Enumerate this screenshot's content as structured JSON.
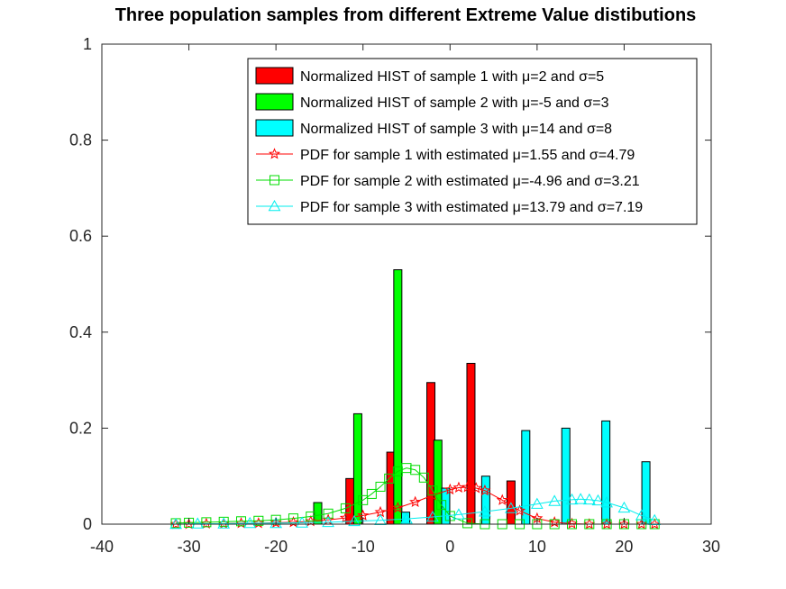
{
  "chart_data": {
    "type": "bar",
    "title": "Three population samples from different Extreme Value distibutions",
    "xlabel": "",
    "ylabel": "",
    "xlim": [
      -40,
      30
    ],
    "ylim": [
      0,
      1
    ],
    "xticks": [
      -40,
      -30,
      -20,
      -10,
      0,
      10,
      20,
      30
    ],
    "yticks": [
      0,
      0.2,
      0.4,
      0.6,
      0.8,
      1
    ],
    "xtick_labels": [
      "-40",
      "-30",
      "-20",
      "-10",
      "0",
      "10",
      "20",
      "30"
    ],
    "ytick_labels": [
      "0",
      "0.2",
      "0.4",
      "0.6",
      "0.8",
      "1"
    ],
    "grid": false,
    "legend_position": "top-right",
    "bar_series": [
      {
        "name": "Normalized HIST of sample 1 with μ=2 and σ=5",
        "color": "#ff0000",
        "x": [
          -11.5,
          -6.8,
          -2.2,
          2.4,
          7.0
        ],
        "values": [
          0.095,
          0.15,
          0.295,
          0.335,
          0.09
        ]
      },
      {
        "name": "Normalized HIST of sample 2 with μ=-5 and σ=3",
        "color": "#00ff00",
        "x": [
          -15.2,
          -10.6,
          -6.0,
          -1.4
        ],
        "values": [
          0.045,
          0.23,
          0.53,
          0.175
        ]
      },
      {
        "name": "Normalized HIST of sample 3 with μ=14 and σ=8",
        "color": "#00ffff",
        "x": [
          -5.1,
          -0.5,
          4.1,
          8.7,
          13.3,
          17.9,
          22.5
        ],
        "values": [
          0.025,
          0.075,
          0.1,
          0.195,
          0.2,
          0.215,
          0.13
        ]
      }
    ],
    "line_series": [
      {
        "name": "PDF for sample 1 with estimated μ=1.55 and σ=4.79",
        "color": "#ff0000",
        "marker": "star",
        "x": [
          -31.5,
          -30,
          -28,
          -26,
          -24,
          -22,
          -20,
          -18,
          -16,
          -14,
          -12,
          -10,
          -8,
          -6,
          -4,
          -2,
          0,
          1,
          2,
          3,
          4,
          6,
          8,
          10,
          12,
          14,
          16,
          18,
          20,
          22,
          23.5
        ],
        "y": [
          0,
          0,
          0.001,
          0.001,
          0.002,
          0.002,
          0.003,
          0.004,
          0.006,
          0.009,
          0.013,
          0.018,
          0.025,
          0.034,
          0.046,
          0.06,
          0.072,
          0.076,
          0.077,
          0.075,
          0.07,
          0.05,
          0.028,
          0.012,
          0.004,
          0.001,
          0,
          0,
          0,
          0,
          0
        ]
      },
      {
        "name": "PDF for sample 2 with estimated μ=-4.96 and σ=3.21",
        "color": "#00dd00",
        "marker": "square",
        "x": [
          -31.5,
          -30,
          -28,
          -26,
          -24,
          -22,
          -20,
          -18,
          -16,
          -14,
          -12,
          -10,
          -9,
          -8,
          -7,
          -6,
          -5,
          -4,
          -3,
          -2,
          -1,
          0,
          2,
          4,
          6,
          8,
          10,
          12,
          14,
          16,
          18,
          20,
          22,
          23.5
        ],
        "y": [
          0.002,
          0.003,
          0.004,
          0.005,
          0.006,
          0.007,
          0.009,
          0.012,
          0.016,
          0.022,
          0.033,
          0.05,
          0.063,
          0.078,
          0.095,
          0.11,
          0.117,
          0.113,
          0.097,
          0.07,
          0.04,
          0.017,
          0.002,
          0,
          0,
          0,
          0,
          0,
          0,
          0,
          0,
          0,
          0,
          0
        ]
      },
      {
        "name": "PDF for sample 3 with estimated μ=13.79 and σ=7.19",
        "color": "#00eeee",
        "marker": "triangle",
        "x": [
          -31.5,
          -29,
          -26,
          -23,
          -20,
          -17,
          -14,
          -11,
          -8,
          -5,
          -2,
          1,
          4,
          7,
          10,
          12,
          14,
          15,
          16,
          17,
          18,
          20,
          22,
          23.5
        ],
        "y": [
          0,
          0.001,
          0.001,
          0.002,
          0.002,
          0.003,
          0.004,
          0.006,
          0.008,
          0.011,
          0.015,
          0.02,
          0.026,
          0.033,
          0.042,
          0.048,
          0.051,
          0.052,
          0.051,
          0.049,
          0.045,
          0.034,
          0.018,
          0.008
        ]
      }
    ]
  }
}
